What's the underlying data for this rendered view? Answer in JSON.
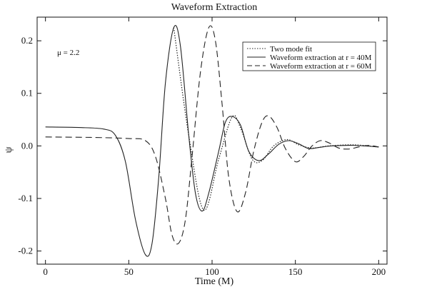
{
  "chart_data": {
    "type": "line",
    "title": "Waveform Extraction",
    "xlabel": "Time (M)",
    "ylabel": "ψ",
    "xlim": [
      -5,
      205
    ],
    "ylim": [
      -0.225,
      0.245
    ],
    "x_ticks": [
      0,
      50,
      100,
      150,
      200
    ],
    "x_tick_labels": [
      "0",
      "50",
      "100",
      "150",
      "200"
    ],
    "y_ticks": [
      -0.2,
      -0.1,
      0.0,
      0.1,
      0.2
    ],
    "y_tick_labels": [
      "-0.2",
      "-0.1",
      "0.0",
      "0.1",
      "0.2"
    ],
    "grid": false,
    "legend_position": "top-right",
    "annotation": "μ = 2.2",
    "series": [
      {
        "name": "Two mode fit",
        "style": "dotted",
        "points": [
          [
            77,
            0.225
          ],
          [
            86,
            0.02
          ],
          [
            95,
            -0.122
          ],
          [
            104,
            -0.025
          ],
          [
            112,
            0.055
          ],
          [
            117,
            0.035
          ],
          [
            124,
            -0.025
          ],
          [
            130,
            -0.028
          ],
          [
            137,
            0.0
          ],
          [
            145,
            0.012
          ],
          [
            152,
            0.002
          ],
          [
            160,
            -0.004
          ],
          [
            170,
            0.0
          ],
          [
            185,
            0.002
          ],
          [
            200,
            -0.002
          ]
        ]
      },
      {
        "name": "Waveform extraction at r = 40M",
        "style": "solid",
        "points": [
          [
            0,
            0.036
          ],
          [
            20,
            0.035
          ],
          [
            35,
            0.032
          ],
          [
            42,
            0.02
          ],
          [
            48,
            -0.03
          ],
          [
            54,
            -0.14
          ],
          [
            60,
            -0.207
          ],
          [
            64,
            -0.185
          ],
          [
            68,
            -0.06
          ],
          [
            72,
            0.12
          ],
          [
            77,
            0.225
          ],
          [
            81,
            0.19
          ],
          [
            86,
            0.02
          ],
          [
            90,
            -0.09
          ],
          [
            94,
            -0.124
          ],
          [
            98,
            -0.09
          ],
          [
            104,
            -0.01
          ],
          [
            108,
            0.045
          ],
          [
            112,
            0.056
          ],
          [
            117,
            0.04
          ],
          [
            122,
            -0.01
          ],
          [
            128,
            -0.028
          ],
          [
            134,
            -0.015
          ],
          [
            140,
            0.003
          ],
          [
            146,
            0.01
          ],
          [
            152,
            0.004
          ],
          [
            158,
            -0.005
          ],
          [
            164,
            -0.003
          ],
          [
            172,
            0.0
          ],
          [
            185,
            0.001
          ],
          [
            200,
            -0.002
          ]
        ]
      },
      {
        "name": "Waveform extraction at r = 60M",
        "style": "dashed",
        "points": [
          [
            0,
            0.017
          ],
          [
            30,
            0.016
          ],
          [
            50,
            0.014
          ],
          [
            60,
            0.01
          ],
          [
            66,
            -0.02
          ],
          [
            72,
            -0.1
          ],
          [
            76,
            -0.17
          ],
          [
            80,
            -0.185
          ],
          [
            84,
            -0.14
          ],
          [
            88,
            -0.02
          ],
          [
            93,
            0.14
          ],
          [
            98,
            0.225
          ],
          [
            102,
            0.2
          ],
          [
            106,
            0.08
          ],
          [
            110,
            -0.06
          ],
          [
            115,
            -0.125
          ],
          [
            120,
            -0.09
          ],
          [
            125,
            -0.01
          ],
          [
            130,
            0.045
          ],
          [
            134,
            0.057
          ],
          [
            139,
            0.035
          ],
          [
            144,
            -0.005
          ],
          [
            150,
            -0.03
          ],
          [
            155,
            -0.02
          ],
          [
            160,
            0.0
          ],
          [
            165,
            0.01
          ],
          [
            170,
            0.006
          ],
          [
            176,
            -0.004
          ],
          [
            182,
            -0.006
          ],
          [
            188,
            -0.002
          ],
          [
            194,
            0.001
          ],
          [
            200,
            -0.002
          ]
        ]
      }
    ]
  }
}
